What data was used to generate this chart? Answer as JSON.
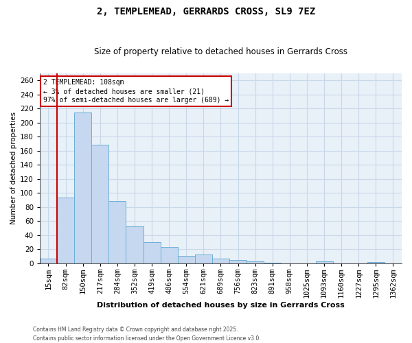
{
  "title1": "2, TEMPLEMEAD, GERRARDS CROSS, SL9 7EZ",
  "title2": "Size of property relative to detached houses in Gerrards Cross",
  "categories": [
    "15sqm",
    "82sqm",
    "150sqm",
    "217sqm",
    "284sqm",
    "352sqm",
    "419sqm",
    "486sqm",
    "554sqm",
    "621sqm",
    "689sqm",
    "756sqm",
    "823sqm",
    "891sqm",
    "958sqm",
    "1025sqm",
    "1093sqm",
    "1160sqm",
    "1227sqm",
    "1295sqm",
    "1362sqm"
  ],
  "values": [
    7,
    93,
    214,
    168,
    88,
    52,
    30,
    23,
    10,
    12,
    7,
    5,
    3,
    1,
    0,
    0,
    3,
    0,
    0,
    2,
    0
  ],
  "bar_color": "#c5d8ef",
  "bar_edge_color": "#6aaed6",
  "grid_color": "#c8d8e8",
  "bg_color": "#e8f0f8",
  "ylabel": "Number of detached properties",
  "xlabel": "Distribution of detached houses by size in Gerrards Cross",
  "redline_index": 1,
  "annotation_text": "2 TEMPLEMEAD: 108sqm\n← 3% of detached houses are smaller (21)\n97% of semi-detached houses are larger (689) →",
  "annotation_box_color": "#ffffff",
  "annotation_box_edge": "#cc0000",
  "footer1": "Contains HM Land Registry data © Crown copyright and database right 2025.",
  "footer2": "Contains public sector information licensed under the Open Government Licence v3.0.",
  "ylim": [
    0,
    270
  ],
  "yticks": [
    0,
    20,
    40,
    60,
    80,
    100,
    120,
    140,
    160,
    180,
    200,
    220,
    240,
    260
  ]
}
